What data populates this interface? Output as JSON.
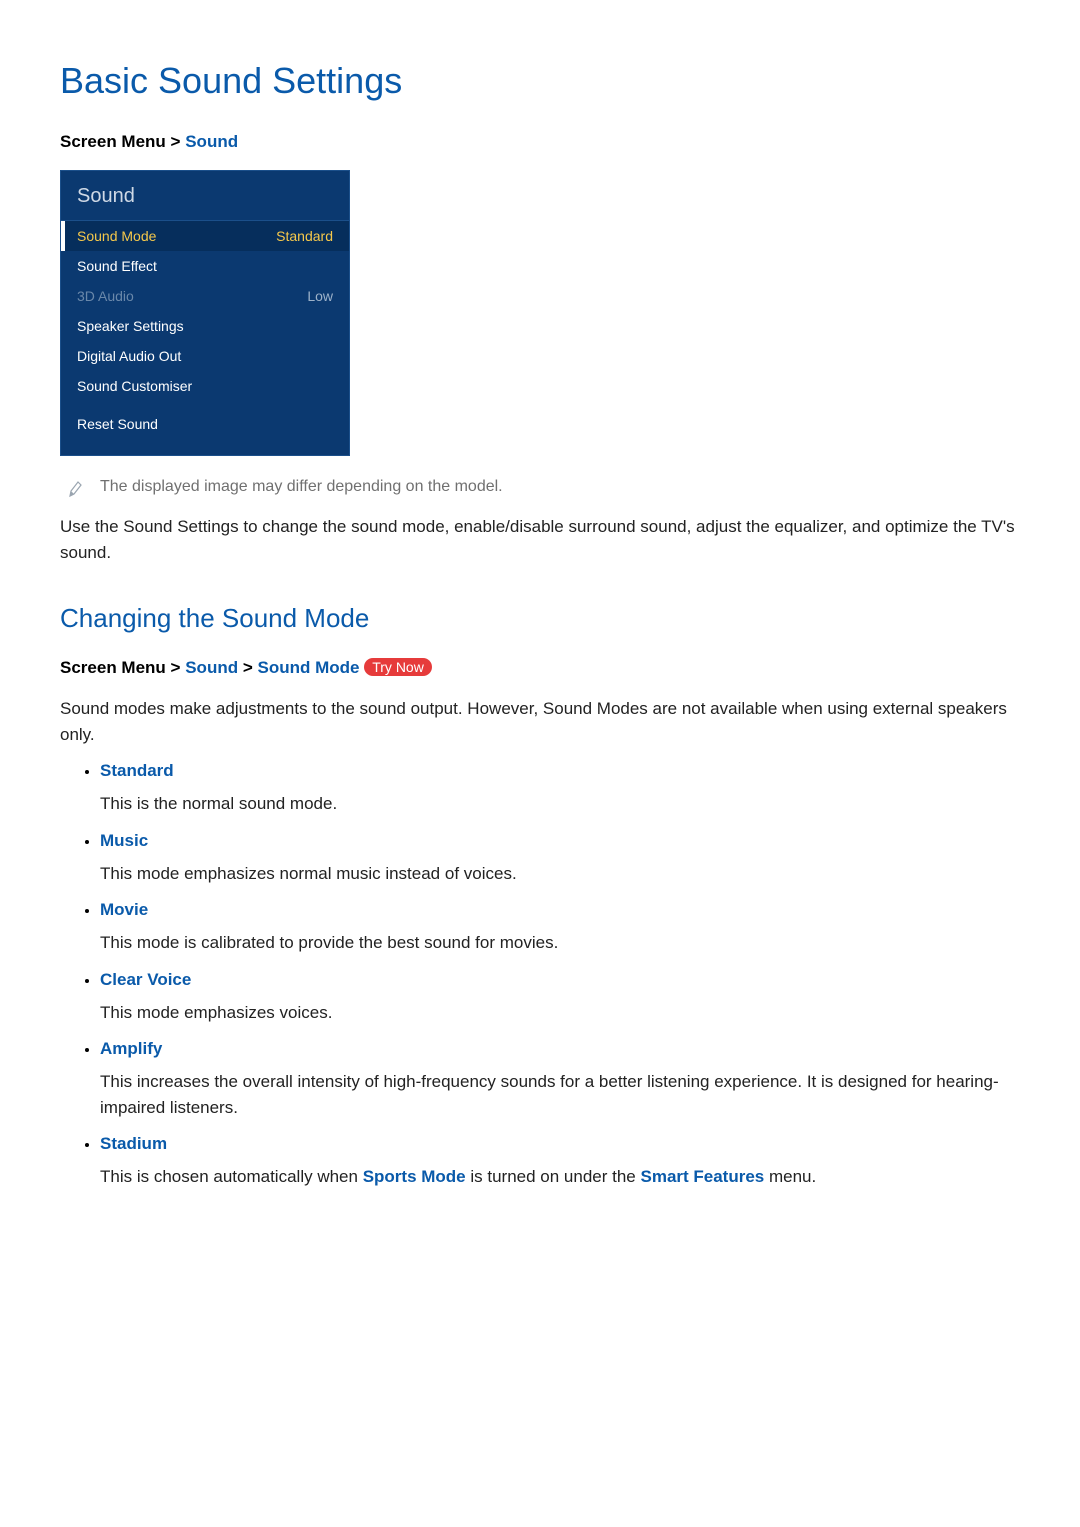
{
  "page": {
    "title": "Basic Sound Settings",
    "breadcrumb1": {
      "prefix": "Screen Menu",
      "sep": ">",
      "link1": "Sound"
    },
    "note": "The displayed image may differ depending on the model.",
    "intro": "Use the Sound Settings to change the sound mode, enable/disable surround sound, adjust the equalizer, and optimize the TV's sound."
  },
  "menu": {
    "header": "Sound",
    "items": [
      {
        "label": "Sound Mode",
        "value": "Standard",
        "selected": true,
        "disabled": false
      },
      {
        "label": "Sound Effect",
        "value": "",
        "selected": false,
        "disabled": false
      },
      {
        "label": "3D Audio",
        "value": "Low",
        "selected": false,
        "disabled": true
      },
      {
        "label": "Speaker Settings",
        "value": "",
        "selected": false,
        "disabled": false
      },
      {
        "label": "Digital Audio Out",
        "value": "",
        "selected": false,
        "disabled": false
      },
      {
        "label": "Sound Customiser",
        "value": "",
        "selected": false,
        "disabled": false
      },
      {
        "label": "Reset Sound",
        "value": "",
        "selected": false,
        "disabled": false,
        "gapBefore": true
      }
    ]
  },
  "section": {
    "title": "Changing the Sound Mode",
    "breadcrumb": {
      "prefix": "Screen Menu",
      "sep1": ">",
      "link1": "Sound",
      "sep2": ">",
      "link2": "Sound Mode",
      "badge": "Try Now"
    },
    "body": "Sound modes make adjustments to the sound output. However, Sound Modes are not available when using external speakers only.",
    "modes": [
      {
        "name": "Standard",
        "desc": "This is the normal sound mode."
      },
      {
        "name": "Music",
        "desc": "This mode emphasizes normal music instead of voices."
      },
      {
        "name": "Movie",
        "desc": "This mode is calibrated to provide the best sound for movies."
      },
      {
        "name": "Clear Voice",
        "desc": "This mode emphasizes voices."
      },
      {
        "name": "Amplify",
        "desc": "This increases the overall intensity of high-frequency sounds for a better listening experience. It is designed for hearing-impaired listeners."
      },
      {
        "name": "Stadium",
        "descPrefix": "This is chosen automatically when ",
        "descLink1": "Sports Mode",
        "descMid": " is turned on under the ",
        "descLink2": "Smart Features",
        "descSuffix": " menu."
      }
    ]
  },
  "colors": {
    "heading": "#0a5aaa",
    "menuBg": "#0b3970",
    "menuSelectedBg": "#062e5c",
    "menuSelectedFg": "#f5c84b",
    "badgeBg": "#e63b3b",
    "noteText": "#707070"
  }
}
